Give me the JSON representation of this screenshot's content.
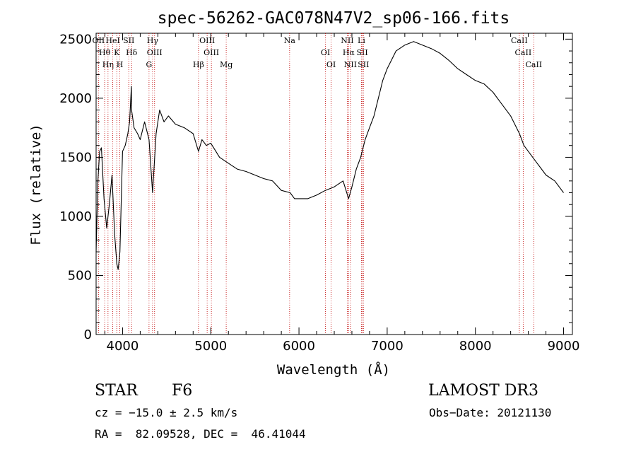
{
  "chart_data": {
    "type": "line",
    "title": "spec-56262-GAC078N47V2_sp06-166.fits",
    "xlabel": "Wavelength (Å)",
    "ylabel": "Flux (relative)",
    "xlim": [
      3700,
      9100
    ],
    "ylim": [
      0,
      2550
    ],
    "xticks": [
      4000,
      5000,
      6000,
      7000,
      8000,
      9000
    ],
    "xtick_labels": [
      "4000",
      "5000",
      "6000",
      "7000",
      "8000",
      "9000"
    ],
    "yticks": [
      0,
      500,
      1000,
      1500,
      2000,
      2500
    ],
    "ytick_labels": [
      "0",
      "500",
      "1000",
      "1500",
      "2000",
      "2500"
    ],
    "grid": false,
    "series": [
      {
        "x": [
          3700,
          3720,
          3740,
          3760,
          3790,
          3820,
          3850,
          3880,
          3910,
          3935,
          3950,
          3970,
          4000,
          4030,
          4060,
          4080,
          4100,
          4102,
          4130,
          4170,
          4200,
          4250,
          4300,
          4340,
          4380,
          4420,
          4470,
          4520,
          4600,
          4700,
          4800,
          4861,
          4900,
          4950,
          5000,
          5100,
          5200,
          5300,
          5400,
          5500,
          5600,
          5700,
          5800,
          5900,
          5950,
          6000,
          6100,
          6200,
          6300,
          6400,
          6500,
          6563,
          6600,
          6650,
          6700,
          6750,
          6800,
          6850,
          6900,
          6950,
          7000,
          7100,
          7200,
          7300,
          7400,
          7500,
          7600,
          7700,
          7800,
          7900,
          8000,
          8100,
          8200,
          8300,
          8400,
          8500,
          8550,
          8600,
          8700,
          8800,
          8900,
          8950,
          9000
        ],
        "y": [
          700,
          1300,
          1550,
          1580,
          1150,
          900,
          1100,
          1350,
          850,
          600,
          550,
          700,
          1550,
          1600,
          1700,
          1800,
          2100,
          1900,
          1750,
          1700,
          1650,
          1800,
          1650,
          1200,
          1700,
          1900,
          1800,
          1850,
          1780,
          1750,
          1700,
          1550,
          1650,
          1600,
          1620,
          1500,
          1450,
          1400,
          1380,
          1350,
          1320,
          1300,
          1220,
          1200,
          1150,
          1150,
          1150,
          1180,
          1220,
          1250,
          1300,
          1150,
          1250,
          1400,
          1500,
          1650,
          1750,
          1850,
          2000,
          2150,
          2250,
          2400,
          2450,
          2480,
          2450,
          2420,
          2380,
          2320,
          2250,
          2200,
          2150,
          2120,
          2050,
          1950,
          1850,
          1700,
          1600,
          1550,
          1450,
          1350,
          1300,
          1250,
          1200
        ]
      }
    ],
    "lines": [
      {
        "x": 3727,
        "labels": [
          "OII"
        ]
      },
      {
        "x": 3797,
        "labels": [
          "Hθ"
        ]
      },
      {
        "x": 3835,
        "labels": [
          "Hη"
        ]
      },
      {
        "x": 3889,
        "labels": [
          "HeI"
        ]
      },
      {
        "x": 3934,
        "labels": [
          "K"
        ]
      },
      {
        "x": 3969,
        "labels": [
          "H"
        ]
      },
      {
        "x": 4070,
        "labels": [
          "SII"
        ]
      },
      {
        "x": 4102,
        "labels": [
          "Hδ"
        ]
      },
      {
        "x": 4300,
        "labels": [
          "G"
        ]
      },
      {
        "x": 4340,
        "labels": [
          "Hγ"
        ]
      },
      {
        "x": 4363,
        "labels": [
          "OIII"
        ]
      },
      {
        "x": 4861,
        "labels": [
          "Hβ"
        ]
      },
      {
        "x": 4959,
        "labels": [
          "OIII"
        ]
      },
      {
        "x": 5007,
        "labels": [
          "OIII"
        ]
      },
      {
        "x": 5175,
        "labels": [
          "Mg"
        ]
      },
      {
        "x": 5894,
        "labels": [
          "Na"
        ]
      },
      {
        "x": 6300,
        "labels": [
          "OI"
        ]
      },
      {
        "x": 6364,
        "labels": [
          "OI"
        ]
      },
      {
        "x": 6548,
        "labels": [
          "NII"
        ]
      },
      {
        "x": 6563,
        "labels": [
          "Hα"
        ]
      },
      {
        "x": 6584,
        "labels": [
          "NII"
        ]
      },
      {
        "x": 6708,
        "labels": [
          "Li"
        ]
      },
      {
        "x": 6717,
        "labels": [
          "SII"
        ]
      },
      {
        "x": 6731,
        "labels": [
          "SII"
        ]
      },
      {
        "x": 8498,
        "labels": [
          "CaII"
        ]
      },
      {
        "x": 8542,
        "labels": [
          "CaII"
        ]
      },
      {
        "x": 8662,
        "labels": [
          "CaII"
        ]
      }
    ]
  },
  "info": {
    "object_class": "STAR",
    "subclass": "F6",
    "survey": "LAMOST DR3",
    "cz": "cz = −15.0 ± 2.5 km/s",
    "obs_date": "Obs−Date: 20121130",
    "coords": "RA =  82.09528, DEC =  46.41044"
  }
}
